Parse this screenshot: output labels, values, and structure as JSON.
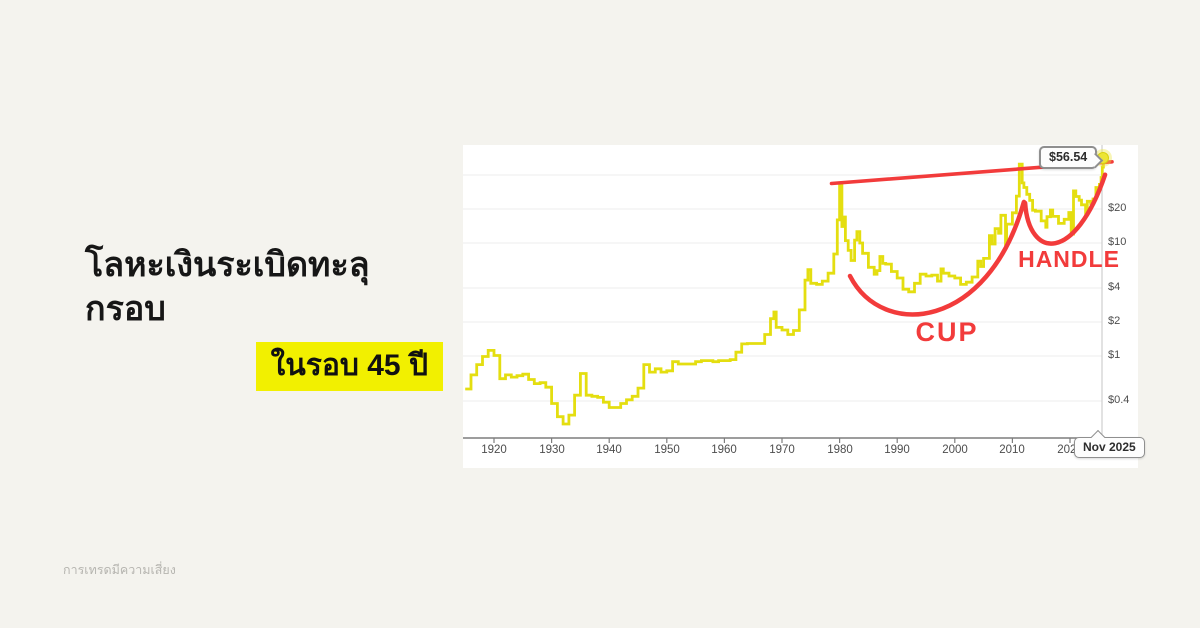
{
  "page": {
    "background_color": "#f4f3ee",
    "title_line1": "โลหะเงินระเบิดทะลุกรอบ",
    "title_line2": "ในรอบ 45 ปี",
    "highlight_color": "#f2f000",
    "footer_disclaimer": "การเทรดมีความเสี่ยง"
  },
  "chart_data": {
    "type": "line",
    "y_scale": "log",
    "x_range": [
      1915,
      2026
    ],
    "line_color": "#e4de10",
    "annotation_color": "#f23b3b",
    "grid": true,
    "legend": "none",
    "x_tick_years": [
      1920,
      1930,
      1940,
      1950,
      1960,
      1970,
      1980,
      1990,
      2000,
      2010,
      2020
    ],
    "y_gridline_values": [
      40,
      20,
      10,
      4,
      2,
      1,
      0.4
    ],
    "y_ticks": [
      {
        "value": 20,
        "label": "$20"
      },
      {
        "value": 10,
        "label": "$10"
      },
      {
        "value": 4,
        "label": "$4"
      },
      {
        "value": 2,
        "label": "$2"
      },
      {
        "value": 1,
        "label": "$1"
      },
      {
        "value": 0.4,
        "label": "$0.4"
      }
    ],
    "last_price_label": "$56.54",
    "last_date_label": "Nov 2025",
    "last_point": {
      "year": 2025.8,
      "price": 56.54
    },
    "cup_label": "CUP",
    "handle_label": "HANDLE",
    "trendline": {
      "from": {
        "year": 1978.6,
        "price": 33.6
      },
      "to": {
        "year": 2027.3,
        "price": 52.3
      }
    },
    "cup_curve": [
      {
        "year": 1981.8,
        "price": 5.1
      },
      {
        "year": 1987.5,
        "price": 1.39
      },
      {
        "year": 2005.8,
        "price": 1.7
      },
      {
        "year": 2012.0,
        "price": 23.1
      }
    ],
    "handle_curve": [
      {
        "year": 2012.2,
        "price": 22.6
      },
      {
        "year": 2012.9,
        "price": 7.1
      },
      {
        "year": 2020.9,
        "price": 6.7
      },
      {
        "year": 2026.1,
        "price": 40.2
      }
    ],
    "points": [
      [
        1915,
        0.51
      ],
      [
        1916,
        0.68
      ],
      [
        1917,
        0.84
      ],
      [
        1918,
        0.99
      ],
      [
        1919,
        1.12
      ],
      [
        1920,
        1.01
      ],
      [
        1921,
        0.63
      ],
      [
        1922,
        0.68
      ],
      [
        1923,
        0.65
      ],
      [
        1924,
        0.67
      ],
      [
        1925,
        0.69
      ],
      [
        1926,
        0.62
      ],
      [
        1927,
        0.57
      ],
      [
        1928,
        0.58
      ],
      [
        1929,
        0.53
      ],
      [
        1930,
        0.38
      ],
      [
        1931,
        0.29
      ],
      [
        1932,
        0.25
      ],
      [
        1933,
        0.3
      ],
      [
        1934,
        0.45
      ],
      [
        1935,
        0.7
      ],
      [
        1936,
        0.45
      ],
      [
        1937,
        0.44
      ],
      [
        1938,
        0.43
      ],
      [
        1939,
        0.39
      ],
      [
        1940,
        0.35
      ],
      [
        1941,
        0.35
      ],
      [
        1942,
        0.38
      ],
      [
        1943,
        0.41
      ],
      [
        1944,
        0.44
      ],
      [
        1945,
        0.52
      ],
      [
        1946,
        0.84
      ],
      [
        1947,
        0.72
      ],
      [
        1948,
        0.77
      ],
      [
        1949,
        0.72
      ],
      [
        1950,
        0.74
      ],
      [
        1951,
        0.89
      ],
      [
        1952,
        0.85
      ],
      [
        1953,
        0.85
      ],
      [
        1954,
        0.85
      ],
      [
        1955,
        0.89
      ],
      [
        1956,
        0.91
      ],
      [
        1957,
        0.91
      ],
      [
        1958,
        0.89
      ],
      [
        1959,
        0.91
      ],
      [
        1960,
        0.91
      ],
      [
        1961,
        0.93
      ],
      [
        1962,
        1.08
      ],
      [
        1963,
        1.28
      ],
      [
        1964,
        1.29
      ],
      [
        1965,
        1.29
      ],
      [
        1966,
        1.29
      ],
      [
        1967,
        1.55
      ],
      [
        1968,
        2.14
      ],
      [
        1968.6,
        2.45
      ],
      [
        1969,
        1.79
      ],
      [
        1970,
        1.7
      ],
      [
        1971,
        1.55
      ],
      [
        1972,
        1.68
      ],
      [
        1973,
        2.56
      ],
      [
        1974,
        4.7
      ],
      [
        1974.5,
        5.8
      ],
      [
        1975,
        4.4
      ],
      [
        1976,
        4.3
      ],
      [
        1977,
        4.6
      ],
      [
        1978,
        5.4
      ],
      [
        1979,
        8.0
      ],
      [
        1979.6,
        16.0
      ],
      [
        1980,
        34.0
      ],
      [
        1980.4,
        14.0
      ],
      [
        1980.7,
        17.0
      ],
      [
        1981,
        10.5
      ],
      [
        1981.5,
        8.6
      ],
      [
        1982,
        7.0
      ],
      [
        1982.6,
        10.6
      ],
      [
        1983,
        12.6
      ],
      [
        1983.5,
        10.0
      ],
      [
        1984,
        8.1
      ],
      [
        1985,
        6.1
      ],
      [
        1986,
        5.3
      ],
      [
        1986.5,
        5.7
      ],
      [
        1987,
        7.6
      ],
      [
        1987.5,
        6.6
      ],
      [
        1988,
        6.5
      ],
      [
        1989,
        5.6
      ],
      [
        1990,
        4.9
      ],
      [
        1991,
        3.9
      ],
      [
        1992,
        3.7
      ],
      [
        1993,
        4.4
      ],
      [
        1994,
        5.3
      ],
      [
        1995,
        5.1
      ],
      [
        1996,
        5.2
      ],
      [
        1997,
        4.6
      ],
      [
        1997.6,
        5.9
      ],
      [
        1998,
        5.4
      ],
      [
        1999,
        5.1
      ],
      [
        2000,
        4.9
      ],
      [
        2001,
        4.3
      ],
      [
        2002,
        4.5
      ],
      [
        2003,
        5.0
      ],
      [
        2004,
        6.9
      ],
      [
        2004.5,
        6.2
      ],
      [
        2005,
        7.3
      ],
      [
        2006,
        11.6
      ],
      [
        2006.5,
        9.8
      ],
      [
        2007,
        13.4
      ],
      [
        2007.6,
        12.2
      ],
      [
        2008,
        17.6
      ],
      [
        2008.8,
        9.7
      ],
      [
        2009,
        14.7
      ],
      [
        2010,
        18.5
      ],
      [
        2010.7,
        26.0
      ],
      [
        2011.2,
        49.8
      ],
      [
        2011.7,
        34.0
      ],
      [
        2012,
        31.0
      ],
      [
        2012.5,
        27.0
      ],
      [
        2013,
        23.8
      ],
      [
        2013.5,
        19.5
      ],
      [
        2014,
        19.1
      ],
      [
        2015,
        15.7
      ],
      [
        2015.8,
        13.8
      ],
      [
        2016,
        17.1
      ],
      [
        2016.6,
        19.6
      ],
      [
        2017,
        17.2
      ],
      [
        2018,
        14.9
      ],
      [
        2019,
        16.2
      ],
      [
        2019.8,
        18.6
      ],
      [
        2020.2,
        12.0
      ],
      [
        2020.6,
        28.9
      ],
      [
        2021,
        25.8
      ],
      [
        2021.6,
        23.9
      ],
      [
        2022,
        21.8
      ],
      [
        2022.7,
        18.3
      ],
      [
        2023,
        23.4
      ],
      [
        2023.6,
        22.4
      ],
      [
        2024,
        24.5
      ],
      [
        2024.5,
        31.0
      ],
      [
        2024.8,
        29.3
      ],
      [
        2025.1,
        33.0
      ],
      [
        2025.4,
        38.0
      ],
      [
        2025.6,
        47.0
      ],
      [
        2025.8,
        56.54
      ]
    ]
  }
}
